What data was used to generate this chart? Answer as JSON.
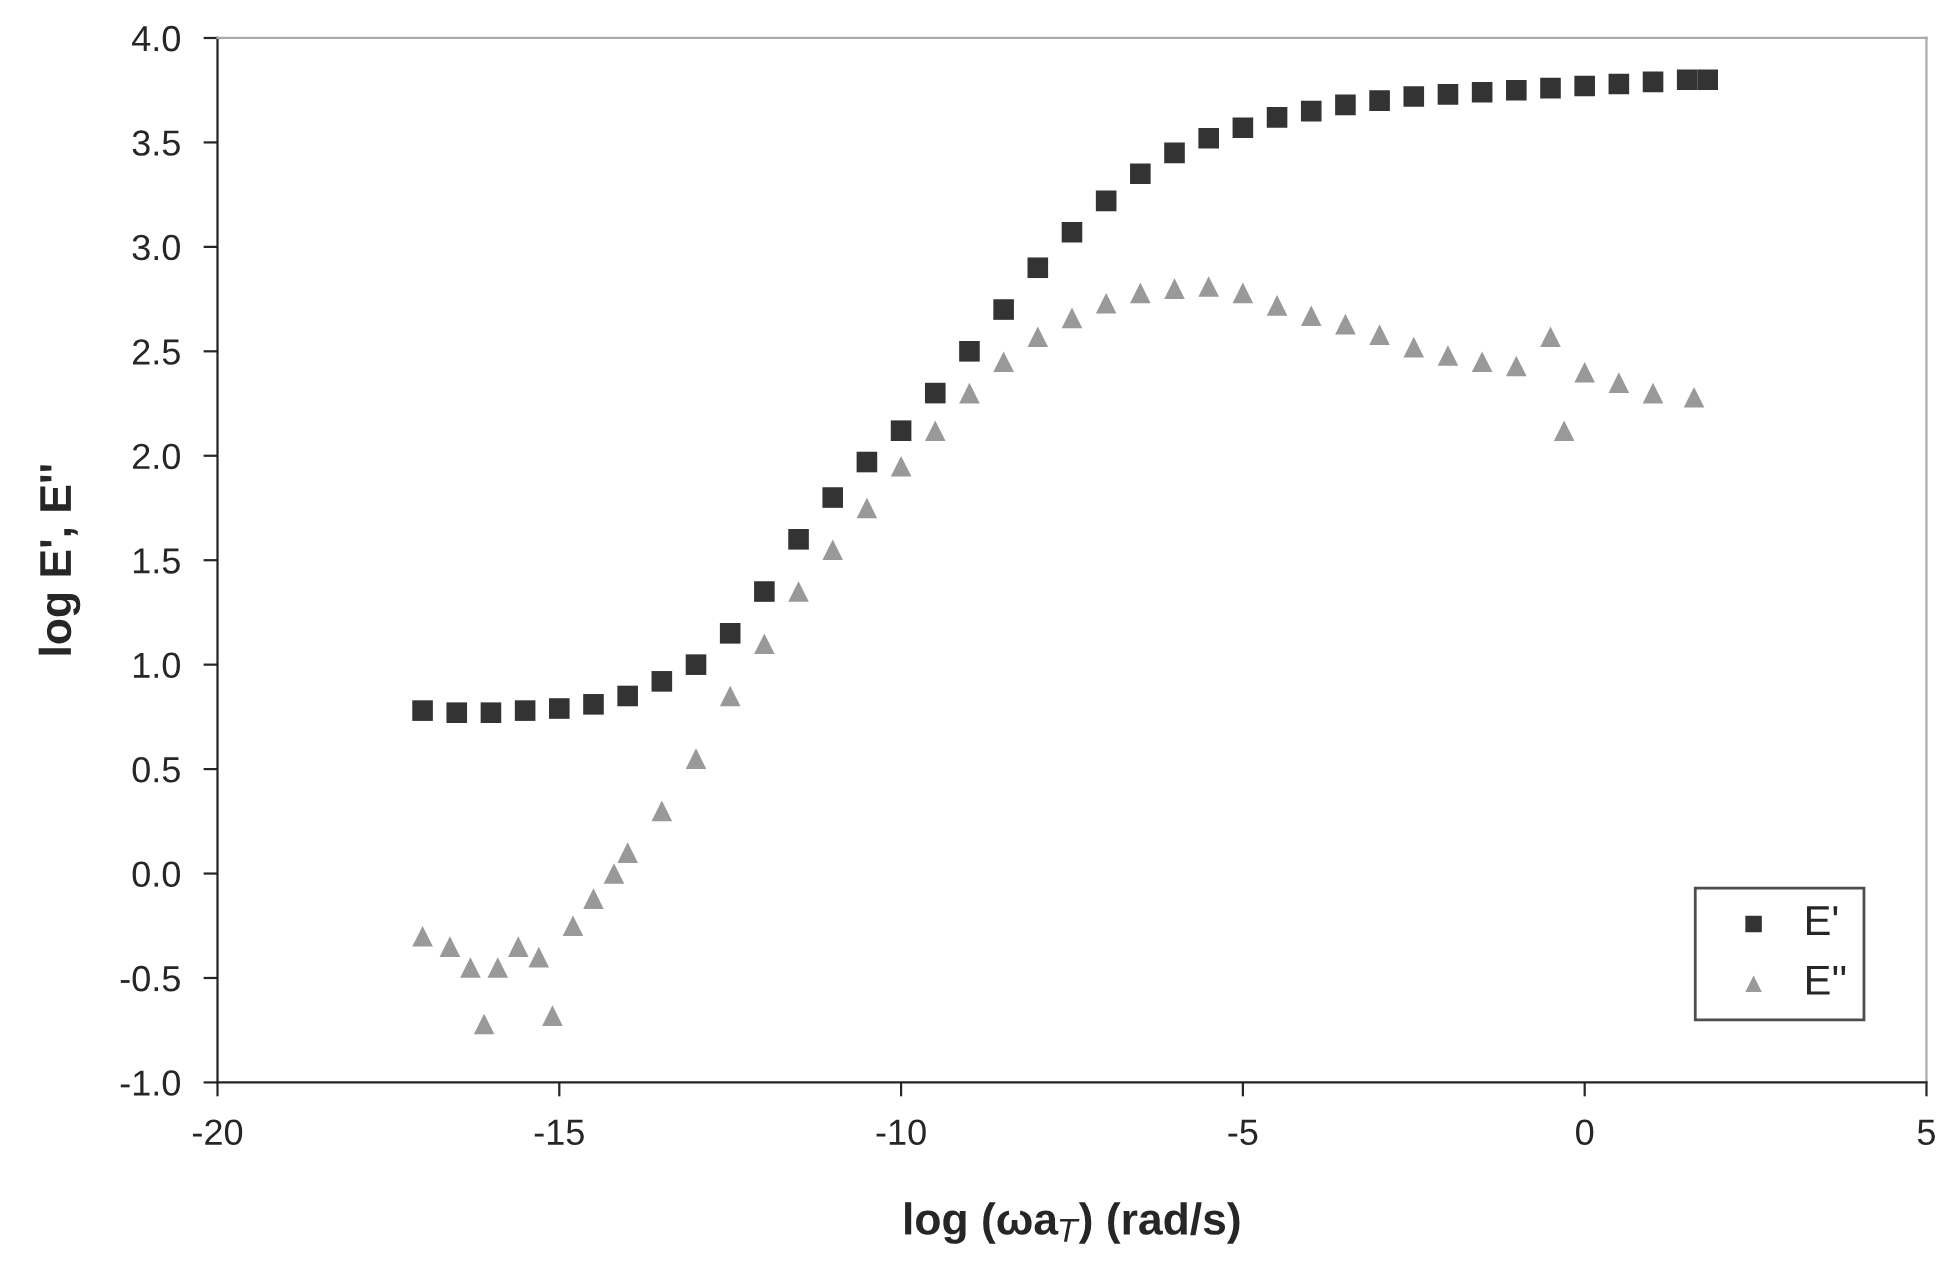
{
  "chart_data": {
    "type": "scatter",
    "xlabel": "log (ωa$_{T}$) (rad/s)",
    "ylabel": "log E', E''",
    "xlim": [
      -20,
      5
    ],
    "xticks": [
      -20,
      -15,
      -10,
      -5,
      0,
      5
    ],
    "ylim": [
      -1.0,
      4.0
    ],
    "yticks": [
      {
        "value": -1.0,
        "label": "-1.0"
      },
      {
        "value": -0.5,
        "label": "-0.5"
      },
      {
        "value": 0.0,
        "label": "0.0"
      },
      {
        "value": 0.5,
        "label": "0.5"
      },
      {
        "value": 1.0,
        "label": "1.0"
      },
      {
        "value": 1.5,
        "label": "1.5"
      },
      {
        "value": 2.0,
        "label": "2.0"
      },
      {
        "value": 2.5,
        "label": "2.5"
      },
      {
        "value": 3.0,
        "label": "3.0"
      },
      {
        "value": 3.5,
        "label": "3.5"
      },
      {
        "value": 4.0,
        "label": "4.0"
      }
    ],
    "grid": false,
    "legend": "bottom right",
    "series": [
      {
        "name": "E'",
        "color": "#333333",
        "marker": "square",
        "x": [
          -17,
          -16.5,
          -16,
          -15.5,
          -15,
          -14.5,
          -14,
          -13.5,
          -13,
          -12.5,
          -12,
          -11.5,
          -11,
          -10.5,
          -10,
          -9.5,
          -9,
          -8.5,
          -8,
          -7.5,
          -7,
          -6.5,
          -6,
          -5.5,
          -5,
          -4.5,
          -4,
          -3.5,
          -3,
          -2.5,
          -2,
          -1.5,
          -1,
          -0.5,
          0,
          0.5,
          1,
          1.5,
          1.8
        ],
        "values": [
          0.78,
          0.77,
          0.77,
          0.78,
          0.79,
          0.81,
          0.85,
          0.92,
          1.0,
          1.15,
          1.35,
          1.6,
          1.8,
          1.97,
          2.12,
          2.3,
          2.5,
          2.7,
          2.9,
          3.07,
          3.22,
          3.35,
          3.45,
          3.52,
          3.57,
          3.62,
          3.65,
          3.68,
          3.7,
          3.72,
          3.73,
          3.74,
          3.75,
          3.76,
          3.77,
          3.78,
          3.79,
          3.8,
          3.8
        ]
      },
      {
        "name": "E''",
        "color": "#999999",
        "marker": "triangle",
        "x": [
          -17,
          -16.6,
          -16.3,
          -16.1,
          -15.9,
          -15.6,
          -15.3,
          -15.1,
          -14.8,
          -14.5,
          -14.2,
          -14,
          -13.5,
          -13,
          -12.5,
          -12,
          -11.5,
          -11,
          -10.5,
          -10,
          -9.5,
          -9,
          -8.5,
          -8,
          -7.5,
          -7,
          -6.5,
          -6,
          -5.5,
          -5,
          -4.5,
          -4,
          -3.5,
          -3,
          -2.5,
          -2,
          -1.5,
          -1,
          -0.5,
          -0.3,
          0,
          0.5,
          1,
          1.6
        ],
        "values": [
          -0.3,
          -0.35,
          -0.45,
          -0.72,
          -0.45,
          -0.35,
          -0.4,
          -0.68,
          -0.25,
          -0.12,
          0.0,
          0.1,
          0.3,
          0.55,
          0.85,
          1.1,
          1.35,
          1.55,
          1.75,
          1.95,
          2.12,
          2.3,
          2.45,
          2.57,
          2.66,
          2.73,
          2.78,
          2.8,
          2.81,
          2.78,
          2.72,
          2.67,
          2.63,
          2.58,
          2.52,
          2.48,
          2.45,
          2.43,
          2.57,
          2.12,
          2.4,
          2.35,
          2.3,
          2.28
        ]
      }
    ]
  }
}
